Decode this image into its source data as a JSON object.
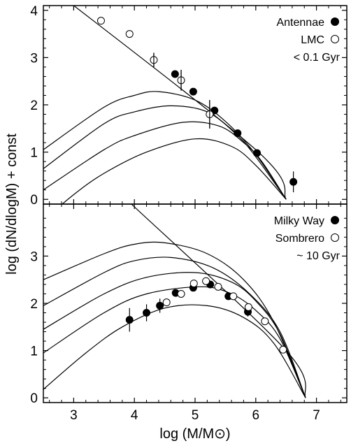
{
  "chart_data": [
    {
      "type": "scatter",
      "panel": "top",
      "xlabel": "",
      "ylabel": "log (dN/dlogM) + const",
      "xlim": [
        2.5,
        7.5
      ],
      "ylim": [
        -0.1,
        4.1
      ],
      "y_ticks": [
        0,
        1,
        2,
        3,
        4
      ],
      "legend_placement": "top-right",
      "legend": [
        {
          "label": "Antennae",
          "marker": "filled-circle"
        },
        {
          "label": "LMC",
          "marker": "open-circle"
        },
        {
          "label": "< 0.1 Gyr",
          "marker": "none"
        }
      ],
      "series": [
        {
          "name": "Antennae",
          "marker": "filled-circle",
          "points": [
            {
              "x": 4.67,
              "y": 2.65,
              "err": 0
            },
            {
              "x": 4.97,
              "y": 2.28,
              "err": 0
            },
            {
              "x": 5.32,
              "y": 1.88,
              "err": 0
            },
            {
              "x": 5.7,
              "y": 1.4,
              "err": 0
            },
            {
              "x": 6.02,
              "y": 0.98,
              "err": 0
            },
            {
              "x": 6.62,
              "y": 0.37,
              "err": 0.22
            }
          ]
        },
        {
          "name": "LMC",
          "marker": "open-circle",
          "points": [
            {
              "x": 3.45,
              "y": 3.78,
              "err": 0
            },
            {
              "x": 3.92,
              "y": 3.5,
              "err": 0
            },
            {
              "x": 4.32,
              "y": 2.95,
              "err": 0.15
            },
            {
              "x": 4.77,
              "y": 2.52,
              "err": 0.22
            },
            {
              "x": 5.24,
              "y": 1.8,
              "err": 0.3
            }
          ]
        }
      ],
      "model_curves": [
        {
          "kind": "power-law",
          "x": [
            2.5,
            6.0,
            6.5
          ],
          "y": [
            4.6,
            1.05,
            0
          ]
        },
        {
          "kind": "turnover",
          "x": [
            2.5,
            3.5,
            4.0,
            4.4,
            5.0,
            5.5,
            6.0,
            6.5
          ],
          "y": [
            1.05,
            1.95,
            2.2,
            2.28,
            2.1,
            1.65,
            0.95,
            0
          ]
        },
        {
          "kind": "turnover",
          "x": [
            2.5,
            3.5,
            4.0,
            4.6,
            5.2,
            5.7,
            6.0,
            6.5
          ],
          "y": [
            0.65,
            1.6,
            1.85,
            1.98,
            1.85,
            1.35,
            0.9,
            0
          ]
        },
        {
          "kind": "turnover",
          "x": [
            2.5,
            3.5,
            4.0,
            4.8,
            5.4,
            5.8,
            6.1,
            6.5
          ],
          "y": [
            0.2,
            1.05,
            1.35,
            1.63,
            1.55,
            1.2,
            0.8,
            0
          ]
        },
        {
          "kind": "turnover",
          "x": [
            2.5,
            3.0,
            3.5,
            4.2,
            5.0,
            5.6,
            6.0,
            6.5
          ],
          "y": [
            -0.45,
            0.1,
            0.55,
            1.0,
            1.28,
            1.12,
            0.72,
            0
          ]
        }
      ]
    },
    {
      "type": "scatter",
      "panel": "bottom",
      "xlabel": "log (M/M⊙)",
      "ylabel": "log (dN/dlogM) + const",
      "xlim": [
        2.5,
        7.5
      ],
      "ylim": [
        -0.1,
        4.1
      ],
      "x_ticks": [
        3,
        4,
        5,
        6,
        7
      ],
      "y_ticks": [
        0,
        1,
        2,
        3
      ],
      "legend_placement": "top-right",
      "legend": [
        {
          "label": "Milky Way",
          "marker": "filled-circle"
        },
        {
          "label": "Sombrero",
          "marker": "open-circle"
        },
        {
          "label": "~ 10 Gyr",
          "marker": "none"
        }
      ],
      "series": [
        {
          "name": "Milky Way",
          "marker": "filled-circle",
          "points": [
            {
              "x": 3.92,
              "y": 1.65,
              "err": 0.25
            },
            {
              "x": 4.2,
              "y": 1.8,
              "err": 0.18
            },
            {
              "x": 4.42,
              "y": 1.95,
              "err": 0.15
            },
            {
              "x": 4.68,
              "y": 2.22,
              "err": 0
            },
            {
              "x": 4.97,
              "y": 2.33,
              "err": 0
            },
            {
              "x": 5.25,
              "y": 2.4,
              "err": 0
            },
            {
              "x": 5.55,
              "y": 2.15,
              "err": 0
            },
            {
              "x": 5.87,
              "y": 1.82,
              "err": 0.1
            }
          ]
        },
        {
          "name": "Sombrero",
          "marker": "open-circle",
          "points": [
            {
              "x": 4.77,
              "y": 2.2,
              "err": 0
            },
            {
              "x": 4.98,
              "y": 2.42,
              "err": 0
            },
            {
              "x": 5.18,
              "y": 2.47,
              "err": 0
            },
            {
              "x": 5.38,
              "y": 2.35,
              "err": 0
            },
            {
              "x": 5.63,
              "y": 2.15,
              "err": 0
            },
            {
              "x": 5.88,
              "y": 1.92,
              "err": 0
            },
            {
              "x": 6.15,
              "y": 1.62,
              "err": 0
            },
            {
              "x": 6.45,
              "y": 1.02,
              "err": 0
            }
          ]
        },
        {
          "name": "",
          "marker": "open-circle",
          "points": [
            {
              "x": 4.53,
              "y": 2.02,
              "err": 0
            }
          ]
        }
      ],
      "model_curves": [
        {
          "kind": "power-law",
          "x": [
            3.95,
            6.5,
            6.82
          ],
          "y": [
            4.1,
            1.0,
            0
          ]
        },
        {
          "kind": "turnover",
          "x": [
            2.5,
            3.5,
            4.0,
            4.5,
            5.2,
            5.8,
            6.3,
            6.82
          ],
          "y": [
            2.5,
            3.05,
            3.25,
            3.28,
            3.05,
            2.5,
            1.6,
            0
          ]
        },
        {
          "kind": "turnover",
          "x": [
            2.5,
            3.5,
            4.0,
            4.6,
            5.3,
            5.9,
            6.4,
            6.82
          ],
          "y": [
            1.95,
            2.65,
            2.9,
            2.97,
            2.75,
            2.2,
            1.4,
            0
          ]
        },
        {
          "kind": "turnover",
          "x": [
            2.5,
            3.5,
            4.2,
            5.0,
            5.6,
            6.0,
            6.4,
            6.82
          ],
          "y": [
            1.45,
            2.2,
            2.55,
            2.65,
            2.45,
            2.05,
            1.35,
            0
          ]
        },
        {
          "kind": "turnover",
          "x": [
            2.5,
            3.5,
            4.2,
            5.1,
            5.6,
            6.0,
            6.4,
            6.82
          ],
          "y": [
            0.95,
            1.8,
            2.2,
            2.35,
            2.2,
            1.85,
            1.25,
            0
          ]
        },
        {
          "kind": "turnover",
          "x": [
            2.5,
            3.2,
            3.8,
            4.5,
            5.2,
            5.8,
            6.3,
            6.82
          ],
          "y": [
            0.18,
            0.95,
            1.5,
            1.9,
            1.95,
            1.7,
            1.15,
            0
          ]
        }
      ]
    }
  ]
}
